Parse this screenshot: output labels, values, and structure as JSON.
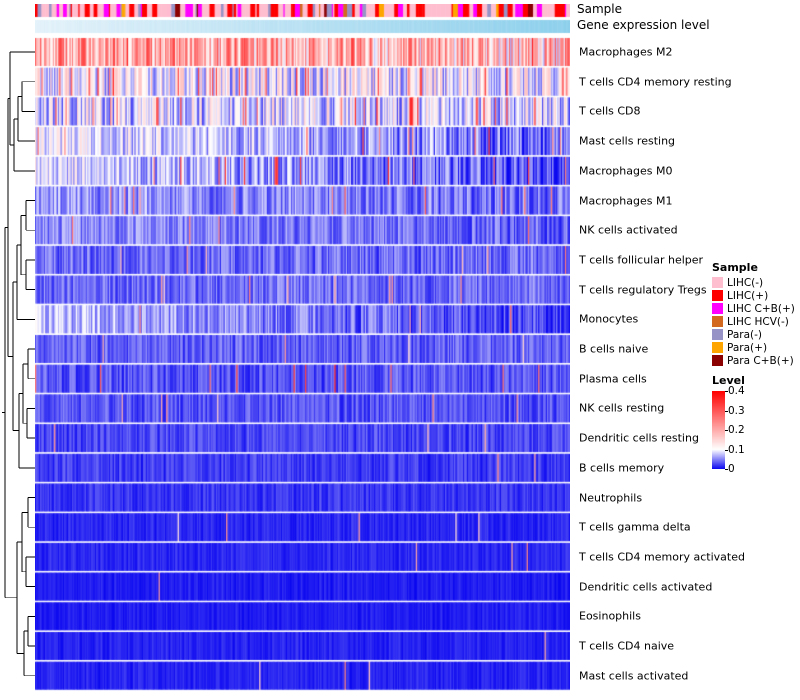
{
  "header": {
    "sample_label": "Sample",
    "gene_label": "Gene expression level"
  },
  "chart_data": {
    "type": "heatmap",
    "title": "",
    "n_columns": 420,
    "color_scale": {
      "min": 0,
      "max": 0.4,
      "white_point": 0.1,
      "low": "#0a06f0",
      "mid": "#ffffff",
      "high": "#ff0000"
    },
    "rows": [
      {
        "label": "Macrophages M2",
        "mean": 0.2,
        "spread": 0.24,
        "spike_prob": 0.03,
        "spike_value": 0.34,
        "trend": 0.02
      },
      {
        "label": "T cells CD4 memory resting",
        "mean": 0.105,
        "spread": 0.15,
        "spike_prob": 0.06,
        "spike_value": 0.3,
        "trend": 0.0
      },
      {
        "label": "T cells CD8",
        "mean": 0.09,
        "spread": 0.14,
        "spike_prob": 0.06,
        "spike_value": 0.3,
        "trend": 0.0
      },
      {
        "label": "Mast cells resting",
        "mean": 0.068,
        "spread": 0.1,
        "spike_prob": 0.03,
        "spike_value": 0.28,
        "trend": 0.03
      },
      {
        "label": "Macrophages M0",
        "mean": 0.055,
        "spread": 0.09,
        "spike_prob": 0.04,
        "spike_value": 0.3,
        "trend": 0.035
      },
      {
        "label": "Macrophages M1",
        "mean": 0.05,
        "spread": 0.07,
        "spike_prob": 0.02,
        "spike_value": 0.25,
        "trend": 0.01
      },
      {
        "label": "NK cells activated",
        "mean": 0.045,
        "spread": 0.06,
        "spike_prob": 0.015,
        "spike_value": 0.25,
        "trend": 0.01
      },
      {
        "label": "T cells follicular helper",
        "mean": 0.04,
        "spread": 0.06,
        "spike_prob": 0.012,
        "spike_value": 0.22,
        "trend": 0.0
      },
      {
        "label": "T cells regulatory Tregs",
        "mean": 0.04,
        "spread": 0.055,
        "spike_prob": 0.01,
        "spike_value": 0.2,
        "trend": 0.0
      },
      {
        "label": "Monocytes",
        "mean": 0.045,
        "spread": 0.07,
        "spike_prob": 0.02,
        "spike_value": 0.25,
        "trend": 0.03
      },
      {
        "label": "B cells naive",
        "mean": 0.035,
        "spread": 0.05,
        "spike_prob": 0.01,
        "spike_value": 0.2,
        "trend": 0.0
      },
      {
        "label": "Plasma cells",
        "mean": 0.03,
        "spread": 0.05,
        "spike_prob": 0.015,
        "spike_value": 0.3,
        "trend": 0.0
      },
      {
        "label": "NK cells resting",
        "mean": 0.03,
        "spread": 0.045,
        "spike_prob": 0.01,
        "spike_value": 0.2,
        "trend": 0.0
      },
      {
        "label": "Dendritic cells resting",
        "mean": 0.025,
        "spread": 0.04,
        "spike_prob": 0.008,
        "spike_value": 0.2,
        "trend": 0.0
      },
      {
        "label": "B cells memory",
        "mean": 0.02,
        "spread": 0.035,
        "spike_prob": 0.008,
        "spike_value": 0.22,
        "trend": 0.0
      },
      {
        "label": "Neutrophils",
        "mean": 0.018,
        "spread": 0.03,
        "spike_prob": 0.006,
        "spike_value": 0.2,
        "trend": 0.0
      },
      {
        "label": "T cells gamma delta",
        "mean": 0.012,
        "spread": 0.022,
        "spike_prob": 0.005,
        "spike_value": 0.18,
        "trend": 0.0
      },
      {
        "label": "T cells CD4 memory activated",
        "mean": 0.012,
        "spread": 0.02,
        "spike_prob": 0.005,
        "spike_value": 0.2,
        "trend": 0.0
      },
      {
        "label": "Dendritic cells activated",
        "mean": 0.008,
        "spread": 0.016,
        "spike_prob": 0.004,
        "spike_value": 0.18,
        "trend": 0.0
      },
      {
        "label": "Eosinophils",
        "mean": 0.008,
        "spread": 0.014,
        "spike_prob": 0.003,
        "spike_value": 0.15,
        "trend": 0.0
      },
      {
        "label": "T cells CD4 naive",
        "mean": 0.01,
        "spread": 0.018,
        "spike_prob": 0.004,
        "spike_value": 0.18,
        "trend": 0.0
      },
      {
        "label": "Mast cells activated",
        "mean": 0.01,
        "spread": 0.02,
        "spike_prob": 0.005,
        "spike_value": 0.2,
        "trend": 0.0
      }
    ],
    "sample_annotation": {
      "label": "Sample",
      "categories": [
        {
          "label": "LIHC(-)",
          "color": "#ffbdd0",
          "weight": 0.48
        },
        {
          "label": "LIHC(+)",
          "color": "#ff0000",
          "weight": 0.18
        },
        {
          "label": "LIHC C+B(+)",
          "color": "#ff00ff",
          "weight": 0.14
        },
        {
          "label": "LIHC HCV(-)",
          "color": "#d2691e",
          "weight": 0.02
        },
        {
          "label": "Para(-)",
          "color": "#9793c6",
          "weight": 0.12
        },
        {
          "label": "Para(+)",
          "color": "#ffa500",
          "weight": 0.03
        },
        {
          "label": "Para C+B(+)",
          "color": "#8b0000",
          "weight": 0.03
        }
      ]
    },
    "gene_annotation": {
      "label": "Gene expression level",
      "start_color": "#e4f2fa",
      "end_color": "#8ed0ec"
    }
  },
  "legend": {
    "sample_title": "Sample",
    "level_title": "Level",
    "level_ticks": [
      "0.4",
      "0.3",
      "0.2",
      "0.1",
      "0"
    ]
  }
}
